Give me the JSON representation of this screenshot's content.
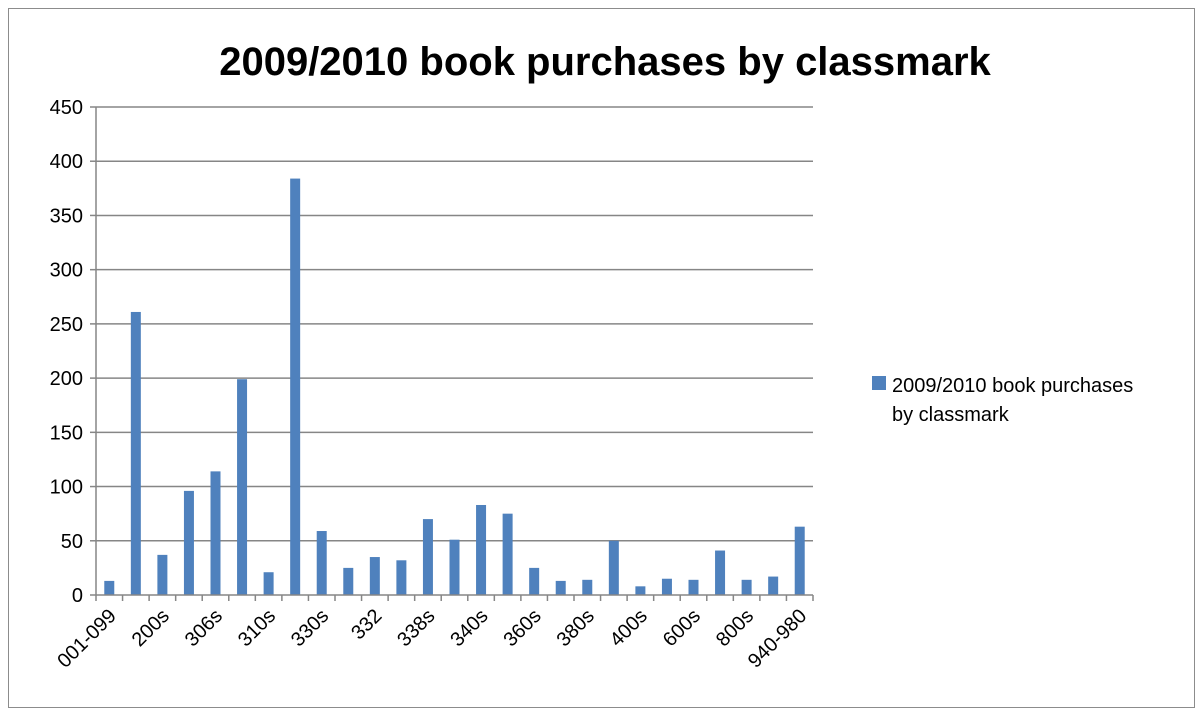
{
  "chart_data": {
    "type": "bar",
    "title": "2009/2010 book purchases by classmark",
    "xlabel": "",
    "ylabel": "",
    "ylim": [
      0,
      450
    ],
    "yticks": [
      0,
      50,
      100,
      150,
      200,
      250,
      300,
      350,
      400,
      450
    ],
    "grid": true,
    "legend_position": "right",
    "bar_color": "#4f81bd",
    "categories": [
      "001-099",
      "",
      "200s",
      "",
      "306s",
      "",
      "310s",
      "",
      "330s",
      "",
      "332",
      "",
      "338s",
      "",
      "340s",
      "",
      "360s",
      "",
      "380s",
      "",
      "400s",
      "",
      "600s",
      "",
      "800s",
      "",
      "940-980"
    ],
    "series": [
      {
        "name": "2009/2010 book purchases by classmark",
        "values": [
          13,
          261,
          37,
          96,
          114,
          199,
          21,
          384,
          59,
          25,
          35,
          32,
          70,
          51,
          83,
          75,
          25,
          13,
          14,
          50,
          8,
          15,
          14,
          41,
          14,
          17,
          63
        ]
      }
    ]
  }
}
